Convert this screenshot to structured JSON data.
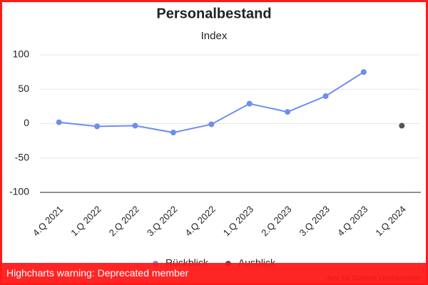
{
  "chart_data": {
    "type": "line",
    "title": "Personalbestand",
    "subtitle": "Index",
    "categories": [
      "4.Q 2021",
      "1.Q 2022",
      "2.Q 2022",
      "3.Q 2022",
      "4.Q 2022",
      "1.Q 2023",
      "2.Q 2023",
      "3.Q 2023",
      "4.Q 2023",
      "1.Q 2024"
    ],
    "series": [
      {
        "name": "Rückblick",
        "color": "#6b8ef2",
        "values": [
          2,
          -4,
          -3,
          -13,
          -1,
          29,
          17,
          40,
          75,
          null
        ]
      },
      {
        "name": "Ausblick",
        "color": "#555555",
        "values": [
          null,
          null,
          null,
          null,
          null,
          null,
          null,
          null,
          null,
          -3
        ]
      }
    ],
    "ylim": [
      -100,
      100
    ],
    "yticks": [
      -100,
      -50,
      0,
      50,
      100
    ],
    "grid": true,
    "legend": "bottom",
    "credits": "Amt für Statistik Liechtenstein"
  },
  "warning": "Highcharts warning: Deprecated member"
}
